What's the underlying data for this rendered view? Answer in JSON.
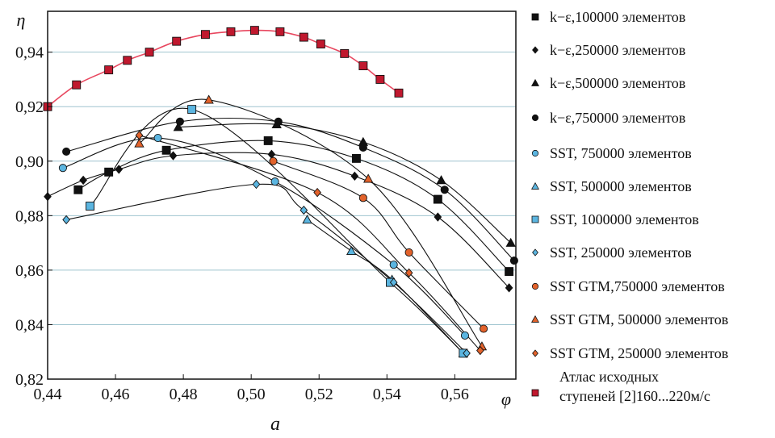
{
  "figure_label": "a",
  "chart_data": {
    "type": "line",
    "xlabel": "φ",
    "ylabel": "η",
    "xlim": [
      0.44,
      0.578
    ],
    "ylim": [
      0.82,
      0.955
    ],
    "x_ticks": [
      "0,44",
      "0,46",
      "0,48",
      "0,50",
      "0,52",
      "0,54",
      "0,56"
    ],
    "y_ticks": [
      "0,82",
      "0,84",
      "0,86",
      "0,88",
      "0,90",
      "0,92",
      "0,94"
    ],
    "x_tick_values": [
      0.44,
      0.46,
      0.48,
      0.5,
      0.52,
      0.54,
      0.56
    ],
    "y_tick_values": [
      0.82,
      0.84,
      0.86,
      0.88,
      0.9,
      0.92,
      0.94
    ],
    "grid": "horizontal",
    "legend_position": "right",
    "series": [
      {
        "name": "k−ε,100000 элементов",
        "color": "#111111",
        "fill": "#111111",
        "marker": "square",
        "x": [
          0.449,
          0.458,
          0.475,
          0.505,
          0.531,
          0.555,
          0.576
        ],
        "y": [
          0.8895,
          0.896,
          0.904,
          0.9075,
          0.901,
          0.886,
          0.8595
        ]
      },
      {
        "name": "k−ε,250000 элементов",
        "color": "#111111",
        "fill": "#111111",
        "marker": "diamond",
        "x": [
          0.44,
          0.4505,
          0.461,
          0.477,
          0.506,
          0.5305,
          0.555,
          0.576
        ],
        "y": [
          0.887,
          0.893,
          0.897,
          0.902,
          0.9025,
          0.8945,
          0.8795,
          0.8535
        ]
      },
      {
        "name": "k−ε,500000 элементов",
        "color": "#111111",
        "fill": "#111111",
        "marker": "triangle",
        "x": [
          0.4785,
          0.5075,
          0.533,
          0.556,
          0.5765
        ],
        "y": [
          0.9125,
          0.9135,
          0.907,
          0.893,
          0.87
        ]
      },
      {
        "name": "k−ε,750000 элементов",
        "color": "#111111",
        "fill": "#111111",
        "marker": "circle",
        "x": [
          0.4455,
          0.479,
          0.508,
          0.533,
          0.557,
          0.5775
        ],
        "y": [
          0.9035,
          0.9145,
          0.9145,
          0.905,
          0.8895,
          0.8635
        ]
      },
      {
        "name": "SST, 750000 элементов",
        "color": "#111111",
        "fill": "#5bb5e0",
        "marker": "circle",
        "x": [
          0.4445,
          0.4725,
          0.507,
          0.542,
          0.563
        ],
        "y": [
          0.8975,
          0.9085,
          0.8925,
          0.862,
          0.836
        ]
      },
      {
        "name": "SST, 500000 элементов",
        "color": "#111111",
        "fill": "#5bb5e0",
        "marker": "triangle",
        "x": [
          0.5165,
          0.5295,
          0.5415,
          0.5625
        ],
        "y": [
          0.8785,
          0.867,
          0.8565,
          0.8295
        ]
      },
      {
        "name": "SST, 1000000 элементов",
        "color": "#111111",
        "fill": "#5bb5e0",
        "marker": "square",
        "x": [
          0.4525,
          0.4825,
          0.541,
          0.5625
        ],
        "y": [
          0.8835,
          0.919,
          0.8555,
          0.8295
        ]
      },
      {
        "name": "SST, 250000 элементов",
        "color": "#111111",
        "fill": "#5bb5e0",
        "marker": "diamond",
        "x": [
          0.4455,
          0.5015,
          0.5155,
          0.542,
          0.5635
        ],
        "y": [
          0.8785,
          0.8915,
          0.882,
          0.8555,
          0.8295
        ]
      },
      {
        "name": "SST GTM,750000 элементов",
        "color": "#111111",
        "fill": "#e2622b",
        "marker": "circle",
        "x": [
          0.5065,
          0.533,
          0.5465,
          0.5685
        ],
        "y": [
          0.9,
          0.8865,
          0.8665,
          0.8385
        ]
      },
      {
        "name": "SST GTM, 500000 элементов",
        "color": "#111111",
        "fill": "#e2622b",
        "marker": "triangle",
        "x": [
          0.467,
          0.4875,
          0.5345,
          0.568
        ],
        "y": [
          0.9065,
          0.9225,
          0.8935,
          0.832
        ]
      },
      {
        "name": "SST GTM, 250000 элементов",
        "color": "#111111",
        "fill": "#e2622b",
        "marker": "diamond",
        "x": [
          0.467,
          0.5195,
          0.5465,
          0.5675
        ],
        "y": [
          0.9095,
          0.8885,
          0.859,
          0.8305
        ]
      },
      {
        "name": "Атлас исходных ступеней [2]160...220м/с",
        "color": "#e8475f",
        "fill": "#c0182e",
        "marker": "square",
        "x": [
          0.44,
          0.4485,
          0.458,
          0.4635,
          0.47,
          0.478,
          0.4865,
          0.494,
          0.501,
          0.5085,
          0.5155,
          0.5205,
          0.5275,
          0.533,
          0.538,
          0.5435
        ],
        "y": [
          0.92,
          0.928,
          0.9335,
          0.937,
          0.94,
          0.944,
          0.9465,
          0.9475,
          0.948,
          0.9475,
          0.9455,
          0.943,
          0.9395,
          0.935,
          0.93,
          0.925
        ]
      }
    ]
  }
}
